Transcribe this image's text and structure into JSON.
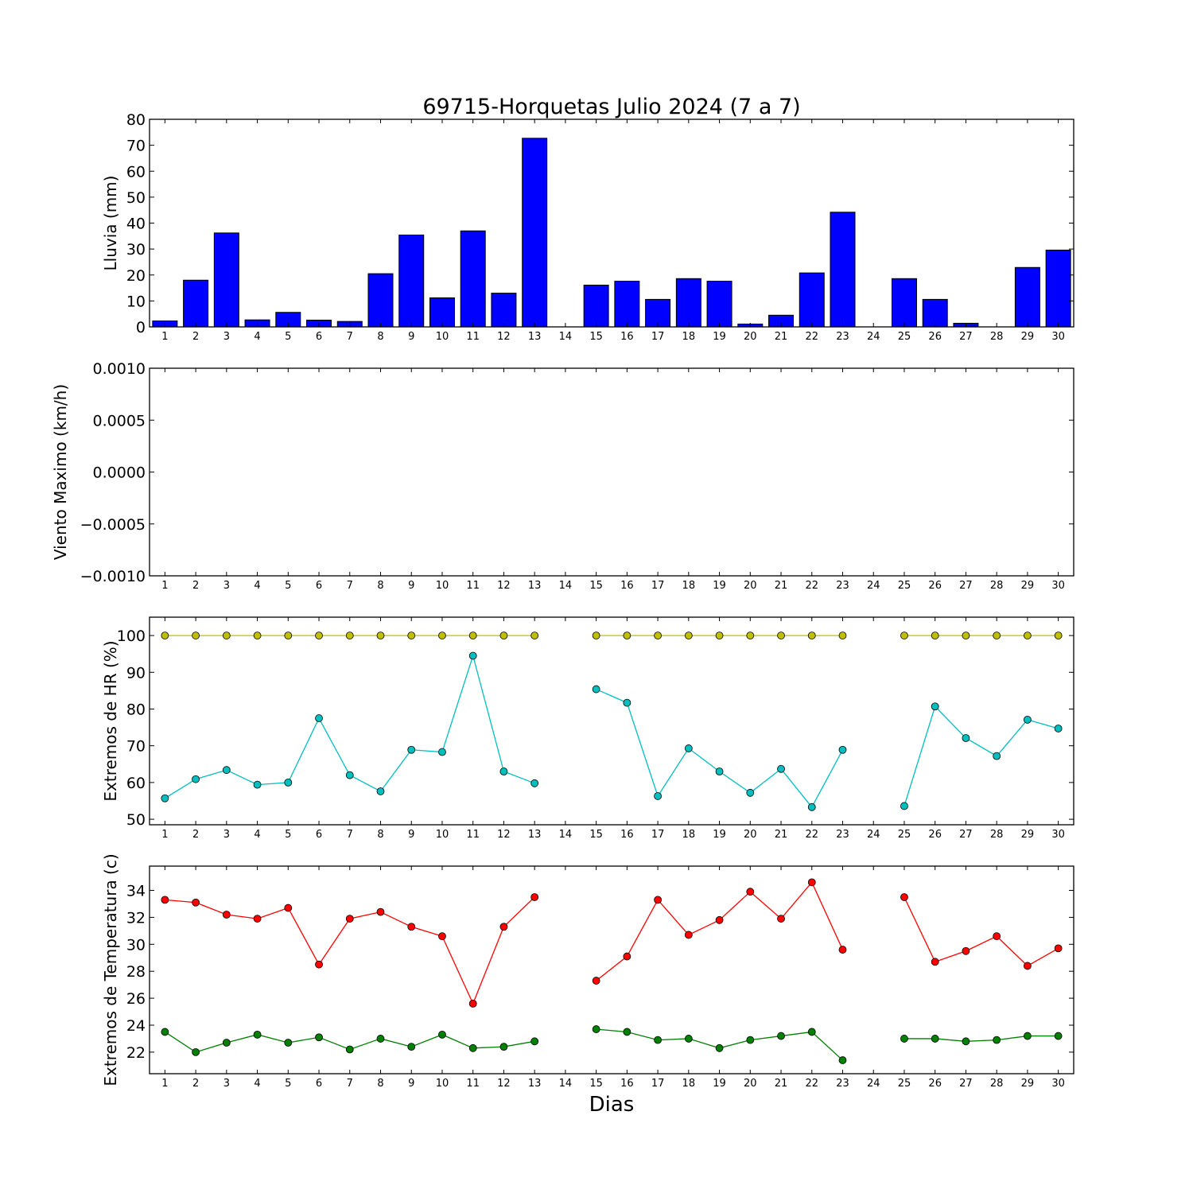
{
  "title": "69715-Horquetas Julio 2024  (7 a 7)",
  "xlabel": "Dias",
  "x": [
    1,
    2,
    3,
    4,
    5,
    6,
    7,
    8,
    9,
    10,
    11,
    12,
    13,
    14,
    15,
    16,
    17,
    18,
    19,
    20,
    21,
    22,
    23,
    24,
    25,
    26,
    27,
    28,
    29,
    30
  ],
  "chart_data": [
    {
      "type": "bar",
      "ylabel": "Lluvia (mm)",
      "ylim": [
        0,
        80
      ],
      "yticks": [
        "0",
        "10",
        "20",
        "30",
        "40",
        "50",
        "60",
        "70",
        "80"
      ],
      "series": [
        {
          "color": "#0000ff",
          "values": [
            2.3,
            18.0,
            36.2,
            2.7,
            5.6,
            2.6,
            2.1,
            20.5,
            35.4,
            11.2,
            37.0,
            13.0,
            72.7,
            0,
            16.1,
            17.6,
            10.6,
            18.6,
            17.6,
            1.1,
            4.5,
            20.8,
            44.2,
            0,
            18.6,
            10.6,
            1.4,
            0,
            22.9,
            29.6
          ]
        }
      ]
    },
    {
      "type": "line",
      "ylabel": "Viento Maximo (km/h)",
      "ylim": [
        -0.001,
        0.001
      ],
      "yticks": [
        "0.0010",
        "0.0005",
        "0.0000",
        "−0.0005",
        "−0.0010"
      ],
      "series": []
    },
    {
      "type": "line",
      "ylabel": "Extremos de HR (%)",
      "ylim": [
        48.5,
        105
      ],
      "yticks": [
        "50",
        "60",
        "70",
        "80",
        "90",
        "100"
      ],
      "series": [
        {
          "color": "#bfbf00",
          "values": [
            100,
            100,
            100,
            100,
            100,
            100,
            100,
            100,
            100,
            100,
            100,
            100,
            100,
            null,
            100,
            100,
            100,
            100,
            100,
            100,
            100,
            100,
            100,
            null,
            100,
            100,
            100,
            100,
            100,
            100
          ]
        },
        {
          "color": "#00bfbf",
          "values": [
            55.7,
            60.9,
            63.4,
            59.4,
            60.0,
            77.5,
            62.0,
            57.6,
            68.9,
            68.3,
            94.5,
            63.0,
            59.8,
            null,
            85.4,
            81.7,
            56.3,
            69.3,
            63.0,
            57.2,
            63.7,
            53.3,
            68.9,
            null,
            53.6,
            80.7,
            72.1,
            67.2,
            77.1,
            74.7
          ]
        }
      ]
    },
    {
      "type": "line",
      "ylabel": "Extremos de Temperatura (c)",
      "ylim": [
        20.4,
        35.8
      ],
      "yticks": [
        "22",
        "24",
        "26",
        "28",
        "30",
        "32",
        "34"
      ],
      "series": [
        {
          "color": "#ff0000",
          "values": [
            33.3,
            33.1,
            32.2,
            31.9,
            32.7,
            28.5,
            31.9,
            32.4,
            31.3,
            30.6,
            25.6,
            31.3,
            33.5,
            null,
            27.3,
            29.1,
            33.3,
            30.7,
            31.8,
            33.9,
            31.9,
            34.6,
            29.6,
            null,
            33.5,
            28.7,
            29.5,
            30.6,
            28.4,
            29.7
          ]
        },
        {
          "color": "#008000",
          "values": [
            23.5,
            22.0,
            22.7,
            23.3,
            22.7,
            23.1,
            22.2,
            23.0,
            22.4,
            23.3,
            22.3,
            22.4,
            22.8,
            null,
            23.7,
            23.5,
            22.9,
            23.0,
            22.3,
            22.9,
            23.2,
            23.5,
            21.4,
            null,
            23.0,
            23.0,
            22.8,
            22.9,
            23.2,
            23.2
          ]
        }
      ]
    }
  ]
}
